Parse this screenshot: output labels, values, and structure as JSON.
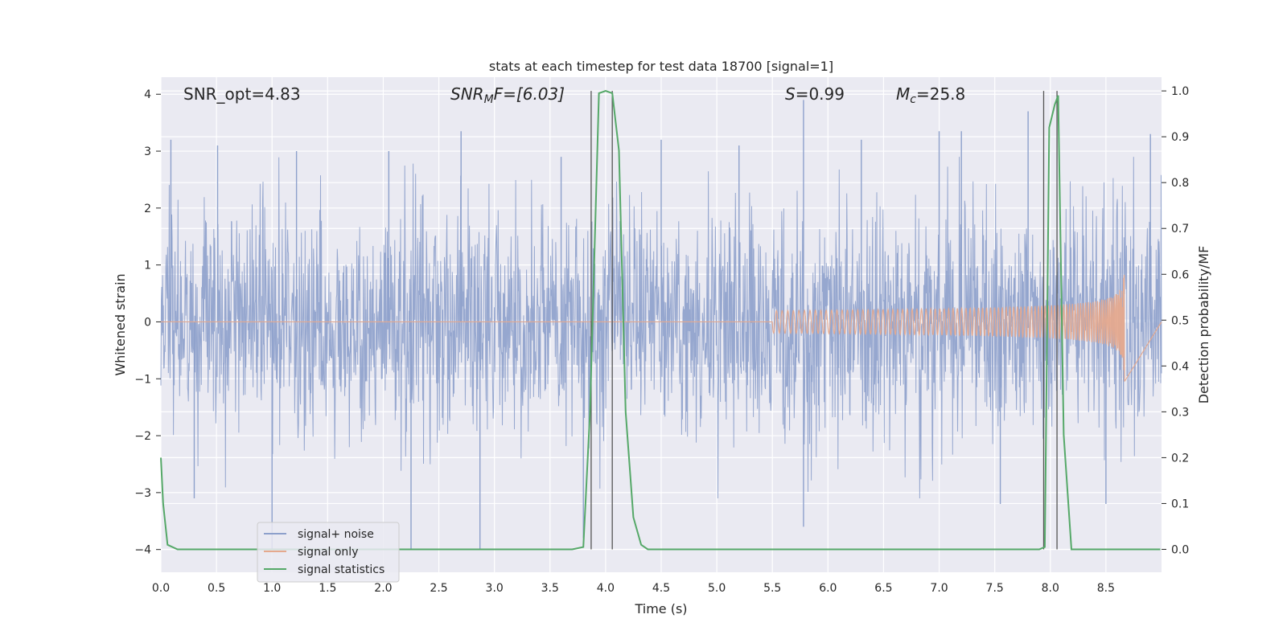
{
  "chart_data": {
    "type": "line",
    "title": "stats at each timestep for test data 18700 [signal=1]",
    "xlabel": "Time (s)",
    "ylabel": "Whitened strain",
    "ylabel_right": "Detection probability/MF",
    "xlim": [
      0.0,
      9.0
    ],
    "ylim": [
      -4.4,
      4.3
    ],
    "ylim_right": [
      -0.05,
      1.03
    ],
    "x_ticks": [
      "0.0",
      "0.5",
      "1.0",
      "1.5",
      "2.0",
      "2.5",
      "3.0",
      "3.5",
      "4.0",
      "4.5",
      "5.0",
      "5.5",
      "6.0",
      "6.5",
      "7.0",
      "7.5",
      "8.0",
      "8.5"
    ],
    "y_ticks": [
      "−4",
      "−3",
      "−2",
      "−1",
      "0",
      "1",
      "2",
      "3",
      "4"
    ],
    "y_ticks_right": [
      "0.0",
      "0.1",
      "0.2",
      "0.3",
      "0.4",
      "0.5",
      "0.6",
      "0.7",
      "0.8",
      "0.9",
      "1.0"
    ],
    "grid": true,
    "legend_position": "lower-left",
    "annotations": {
      "snr_opt": "SNR_opt=4.83",
      "snr_mf_main": "SNR",
      "snr_mf_sub": "M",
      "snr_mf_rest": "F=[6.03]",
      "s_main": "S",
      "s_rest": "=0.99",
      "mc_main": "M",
      "mc_sub": "c",
      "mc_rest": "=25.8"
    },
    "vertical_lines_x": [
      3.87,
      4.06,
      7.94,
      8.06
    ],
    "series": [
      {
        "name": "signal+ noise",
        "color": "#8da0cb",
        "description_axis": "left",
        "envelope_peaks_top": [
          [
            0.09,
            3.2
          ],
          [
            0.51,
            3.1
          ],
          [
            1.22,
            3.0
          ],
          [
            2.05,
            3.0
          ],
          [
            2.7,
            3.35
          ],
          [
            3.6,
            2.9
          ],
          [
            4.5,
            3.2
          ],
          [
            5.2,
            3.1
          ],
          [
            5.78,
            3.9
          ],
          [
            6.3,
            3.2
          ],
          [
            7.0,
            3.35
          ],
          [
            7.2,
            3.35
          ],
          [
            7.8,
            3.7
          ],
          [
            8.9,
            3.3
          ]
        ],
        "envelope_peaks_bottom": [
          [
            0.3,
            -3.1
          ],
          [
            1.0,
            -4.0
          ],
          [
            2.25,
            -4.0
          ],
          [
            2.87,
            -4.0
          ],
          [
            3.8,
            -3.8
          ],
          [
            5.78,
            -3.6
          ],
          [
            7.55,
            -3.2
          ],
          [
            8.5,
            -3.2
          ]
        ]
      },
      {
        "name": "signal only",
        "color": "#e5a98e",
        "description_axis": "left",
        "chirp_start_x": 5.5,
        "chirp_peak_x": 8.67,
        "chirp_peak_amplitude": 1.05
      },
      {
        "name": "signal statistics",
        "color": "#55a868",
        "description_axis": "right",
        "x": [
          0.0,
          0.02,
          0.06,
          0.15,
          0.5,
          1.0,
          2.0,
          3.0,
          3.7,
          3.8,
          3.86,
          3.94,
          4.0,
          4.06,
          4.12,
          4.18,
          4.25,
          4.32,
          4.38,
          4.5,
          5.0,
          6.0,
          7.0,
          7.5,
          7.9,
          7.95,
          7.99,
          8.04,
          8.07,
          8.12,
          8.19,
          8.3,
          8.5,
          8.99
        ],
        "values": [
          0.2,
          0.1,
          0.01,
          0.0,
          0.0,
          0.0,
          0.0,
          0.0,
          0.0,
          0.005,
          0.3,
          0.995,
          1.0,
          0.995,
          0.87,
          0.3,
          0.07,
          0.01,
          0.0,
          0.0,
          0.0,
          0.0,
          0.0,
          0.0,
          0.0,
          0.005,
          0.92,
          0.97,
          0.99,
          0.25,
          0.0,
          0.0,
          0.0,
          0.0
        ]
      }
    ]
  }
}
